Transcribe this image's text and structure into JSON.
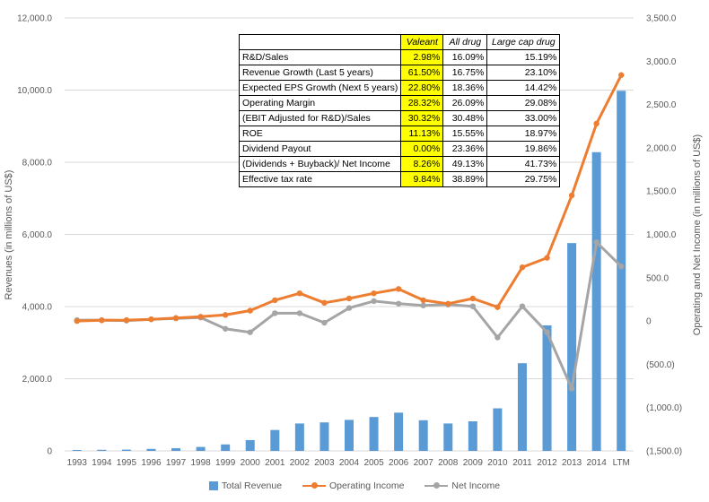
{
  "chart_data": {
    "type": "bar+line",
    "title": "",
    "categories": [
      "1993",
      "1994",
      "1995",
      "1996",
      "1997",
      "1998",
      "1999",
      "2000",
      "2001",
      "2002",
      "2003",
      "2004",
      "2005",
      "2006",
      "2007",
      "2008",
      "2009",
      "2010",
      "2011",
      "2012",
      "2013",
      "2014",
      "LTM"
    ],
    "series": [
      {
        "name": "Total Revenue",
        "type": "bar",
        "axis": "left",
        "color": "#5b9bd5",
        "values": [
          25,
          30,
          35,
          55,
          75,
          110,
          180,
          300,
          580,
          760,
          790,
          860,
          940,
          1060,
          850,
          760,
          820,
          1180,
          2430,
          3480,
          5760,
          8280,
          9980
        ]
      },
      {
        "name": "Operating Income",
        "type": "line",
        "axis": "right",
        "color": "#ed7d31",
        "values": [
          0,
          8,
          10,
          20,
          35,
          50,
          70,
          120,
          240,
          320,
          210,
          260,
          320,
          370,
          240,
          200,
          260,
          160,
          620,
          730,
          1450,
          2280,
          2840
        ]
      },
      {
        "name": "Net Income",
        "type": "line",
        "axis": "right",
        "color": "#a5a5a5",
        "values": [
          10,
          10,
          5,
          20,
          30,
          40,
          -90,
          -130,
          90,
          90,
          -20,
          150,
          230,
          200,
          180,
          190,
          170,
          -190,
          170,
          -130,
          -780,
          910,
          630
        ]
      }
    ],
    "ylabel": "Revenues (in millions of US$)",
    "y2label": "Operating and Net Income (in millions of US$)",
    "ylim": [
      0,
      12000
    ],
    "y2lim": [
      -1500,
      3500
    ],
    "yticks": [
      "0",
      "2,000.0",
      "4,000.0",
      "6,000.0",
      "8,000.0",
      "10,000.0",
      "12,000.0"
    ],
    "y2ticks": [
      "(1,500.0)",
      "(1,000.0)",
      "(500.0)",
      "0",
      "500.0",
      "1,000.0",
      "1,500.0",
      "2,000.0",
      "2,500.0",
      "3,000.0",
      "3,500.0"
    ],
    "legend_position": "bottom",
    "table": {
      "headers": [
        "",
        "Valeant",
        "All drug",
        "Large cap drug"
      ],
      "rows": [
        [
          "R&D/Sales",
          "2.98%",
          "16.09%",
          "15.19%"
        ],
        [
          "Revenue Growth (Last 5 years)",
          "61.50%",
          "16.75%",
          "23.10%"
        ],
        [
          "Expected EPS Growth (Next 5 years)",
          "22.80%",
          "18.36%",
          "14.42%"
        ],
        [
          "Operating Margin",
          "28.32%",
          "26.09%",
          "29.08%"
        ],
        [
          "(EBIT Adjusted for R&D)/Sales",
          "30.32%",
          "30.48%",
          "33.00%"
        ],
        [
          "ROE",
          "11.13%",
          "15.55%",
          "18.97%"
        ],
        [
          "Dividend Payout",
          "0.00%",
          "23.36%",
          "19.86%"
        ],
        [
          "(Dividends + Buyback)/ Net Income",
          "8.26%",
          "49.13%",
          "41.73%"
        ],
        [
          "Effective tax rate",
          "9.84%",
          "38.89%",
          "29.75%"
        ]
      ]
    }
  }
}
